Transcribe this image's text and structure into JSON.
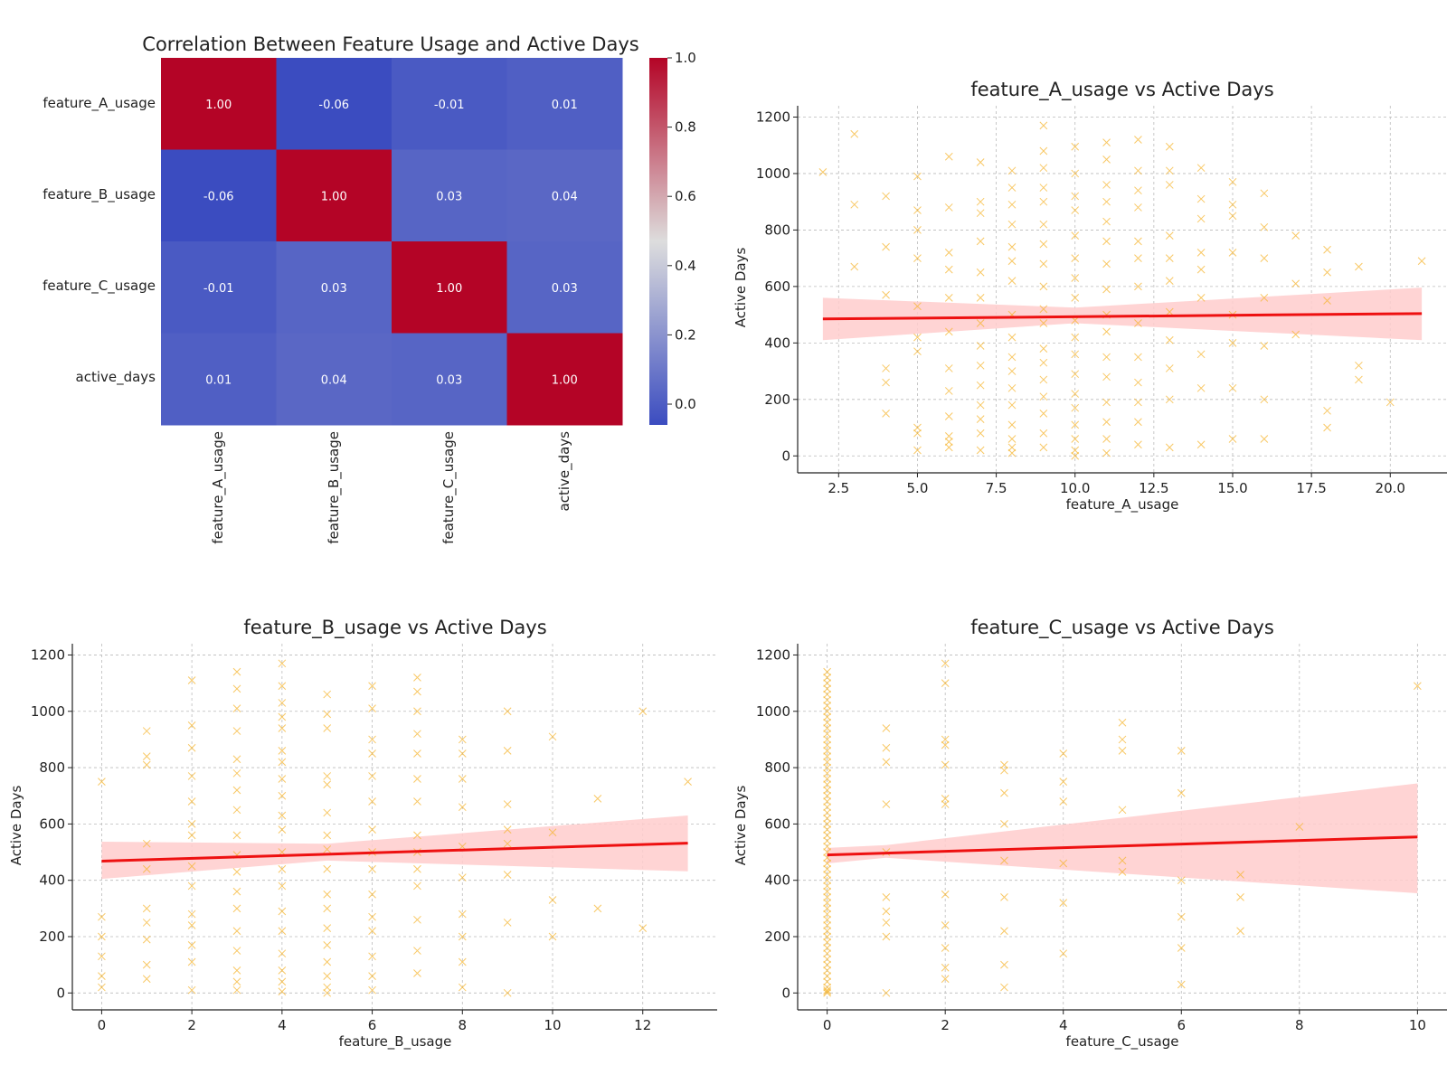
{
  "colors": {
    "scatter": "#f5b632",
    "fit_line": "#ee1111",
    "ci_band": "#ffcccc",
    "grid": "#bbbbbb",
    "heat_low": "#3b4cc0",
    "heat_mid": "#dddddd",
    "heat_high": "#b40426"
  },
  "chart_data": [
    {
      "type": "heatmap",
      "title": "Correlation Between Feature Usage and Active Days",
      "row_labels": [
        "feature_A_usage",
        "feature_B_usage",
        "feature_C_usage",
        "active_days"
      ],
      "col_labels": [
        "feature_A_usage",
        "feature_B_usage",
        "feature_C_usage",
        "active_days"
      ],
      "values": [
        [
          1.0,
          -0.06,
          -0.01,
          0.01
        ],
        [
          -0.06,
          1.0,
          0.03,
          0.04
        ],
        [
          -0.01,
          0.03,
          1.0,
          0.03
        ],
        [
          0.01,
          0.04,
          0.03,
          1.0
        ]
      ],
      "annotations": [
        [
          "1.00",
          "-0.06",
          "-0.01",
          "0.01"
        ],
        [
          "-0.06",
          "1.00",
          "0.03",
          "0.04"
        ],
        [
          "-0.01",
          "0.03",
          "1.00",
          "0.03"
        ],
        [
          "0.01",
          "0.04",
          "0.03",
          "1.00"
        ]
      ],
      "colorbar": {
        "range": [
          -0.06,
          1.0
        ],
        "ticks": [
          "1.0",
          "0.8",
          "0.6",
          "0.4",
          "0.2",
          "0.0"
        ],
        "tick_values": [
          1.0,
          0.8,
          0.6,
          0.4,
          0.2,
          0.0
        ]
      }
    },
    {
      "type": "scatter",
      "title": "feature_A_usage vs Active Days",
      "xlabel": "feature_A_usage",
      "ylabel": "Active Days",
      "xlim": [
        1.2,
        21.8
      ],
      "ylim": [
        -60,
        1240
      ],
      "xticks": [
        2.5,
        5.0,
        7.5,
        10.0,
        12.5,
        15.0,
        17.5,
        20.0
      ],
      "xtick_labels": [
        "2.5",
        "5.0",
        "7.5",
        "10.0",
        "12.5",
        "15.0",
        "17.5",
        "20.0"
      ],
      "yticks": [
        0,
        200,
        400,
        600,
        800,
        1000,
        1200
      ],
      "ytick_labels": [
        "0",
        "200",
        "400",
        "600",
        "800",
        "1000",
        "1200"
      ],
      "x_values": [
        2,
        3,
        3,
        3,
        4,
        4,
        4,
        4,
        4,
        4,
        5,
        5,
        5,
        5,
        5,
        5,
        5,
        5,
        5,
        5,
        6,
        6,
        6,
        6,
        6,
        6,
        6,
        6,
        6,
        6,
        6,
        6,
        7,
        7,
        7,
        7,
        7,
        7,
        7,
        7,
        7,
        7,
        7,
        7,
        7,
        7,
        8,
        8,
        8,
        8,
        8,
        8,
        8,
        8,
        8,
        8,
        8,
        8,
        8,
        8,
        8,
        8,
        8,
        9,
        9,
        9,
        9,
        9,
        9,
        9,
        9,
        9,
        9,
        9,
        9,
        9,
        9,
        9,
        9,
        9,
        9,
        10,
        10,
        10,
        10,
        10,
        10,
        10,
        10,
        10,
        10,
        10,
        10,
        10,
        10,
        10,
        10,
        10,
        10,
        11,
        11,
        11,
        11,
        11,
        11,
        11,
        11,
        11,
        11,
        11,
        11,
        11,
        11,
        11,
        11,
        12,
        12,
        12,
        12,
        12,
        12,
        12,
        12,
        12,
        12,
        12,
        12,
        12,
        13,
        13,
        13,
        13,
        13,
        13,
        13,
        13,
        13,
        13,
        13,
        14,
        14,
        14,
        14,
        14,
        14,
        14,
        14,
        14,
        15,
        15,
        15,
        15,
        15,
        15,
        15,
        15,
        16,
        16,
        16,
        16,
        16,
        16,
        16,
        17,
        17,
        17,
        18,
        18,
        18,
        18,
        18,
        19,
        19,
        19,
        20,
        21
      ],
      "y_values": [
        1005,
        1140,
        890,
        670,
        920,
        740,
        570,
        310,
        260,
        150,
        990,
        870,
        800,
        700,
        530,
        420,
        370,
        100,
        80,
        20,
        1060,
        880,
        720,
        660,
        560,
        440,
        310,
        230,
        140,
        70,
        50,
        30,
        1040,
        900,
        860,
        760,
        650,
        560,
        470,
        390,
        320,
        250,
        180,
        130,
        80,
        20,
        1010,
        950,
        890,
        820,
        740,
        690,
        620,
        500,
        420,
        350,
        300,
        240,
        180,
        110,
        60,
        30,
        10,
        1170,
        1080,
        1020,
        950,
        900,
        820,
        750,
        680,
        600,
        520,
        470,
        380,
        330,
        270,
        210,
        150,
        80,
        30,
        1095,
        1000,
        920,
        870,
        780,
        700,
        630,
        560,
        480,
        420,
        360,
        290,
        220,
        170,
        110,
        60,
        20,
        0,
        1110,
        1050,
        960,
        900,
        830,
        760,
        680,
        590,
        500,
        440,
        350,
        280,
        190,
        120,
        60,
        10,
        1120,
        1010,
        940,
        880,
        760,
        700,
        600,
        470,
        350,
        260,
        190,
        120,
        40,
        1095,
        1010,
        960,
        780,
        700,
        620,
        510,
        410,
        310,
        200,
        30,
        1020,
        910,
        840,
        720,
        660,
        560,
        360,
        240,
        40,
        970,
        890,
        850,
        720,
        500,
        400,
        240,
        60,
        930,
        810,
        700,
        560,
        390,
        200,
        60,
        780,
        610,
        430,
        730,
        650,
        550,
        160,
        100,
        670,
        320,
        270,
        190,
        690
      ],
      "fit": {
        "x": [
          2,
          21
        ],
        "y": [
          485,
          504
        ],
        "ci_lower": [
          410,
          410
        ],
        "ci_mid_lower": 470,
        "ci_upper": [
          560,
          596
        ],
        "ci_mid_upper": 525,
        "ci_mid_x": 10
      }
    },
    {
      "type": "scatter",
      "title": "feature_B_usage vs Active Days",
      "xlabel": "feature_B_usage",
      "ylabel": "Active Days",
      "xlim": [
        -0.65,
        13.65
      ],
      "ylim": [
        -60,
        1240
      ],
      "xticks": [
        0,
        2,
        4,
        6,
        8,
        10,
        12
      ],
      "xtick_labels": [
        "0",
        "2",
        "4",
        "6",
        "8",
        "10",
        "12"
      ],
      "yticks": [
        0,
        200,
        400,
        600,
        800,
        1000,
        1200
      ],
      "ytick_labels": [
        "0",
        "200",
        "400",
        "600",
        "800",
        "1000",
        "1200"
      ],
      "x_values": [
        0,
        0,
        0,
        0,
        0,
        0,
        1,
        1,
        1,
        1,
        1,
        1,
        1,
        1,
        1,
        1,
        2,
        2,
        2,
        2,
        2,
        2,
        2,
        2,
        2,
        2,
        2,
        2,
        2,
        2,
        3,
        3,
        3,
        3,
        3,
        3,
        3,
        3,
        3,
        3,
        3,
        3,
        3,
        3,
        3,
        3,
        3,
        3,
        4,
        4,
        4,
        4,
        4,
        4,
        4,
        4,
        4,
        4,
        4,
        4,
        4,
        4,
        4,
        4,
        4,
        4,
        4,
        4,
        5,
        5,
        5,
        5,
        5,
        5,
        5,
        5,
        5,
        5,
        5,
        5,
        5,
        5,
        5,
        5,
        5,
        6,
        6,
        6,
        6,
        6,
        6,
        6,
        6,
        6,
        6,
        6,
        6,
        6,
        6,
        6,
        7,
        7,
        7,
        7,
        7,
        7,
        7,
        7,
        7,
        7,
        7,
        7,
        7,
        7,
        8,
        8,
        8,
        8,
        8,
        8,
        8,
        8,
        8,
        8,
        9,
        9,
        9,
        9,
        9,
        9,
        9,
        9,
        10,
        10,
        10,
        10,
        11,
        11,
        12,
        12,
        13
      ],
      "y_values": [
        750,
        270,
        200,
        130,
        60,
        20,
        930,
        840,
        810,
        530,
        440,
        300,
        250,
        190,
        100,
        50,
        1110,
        950,
        870,
        770,
        680,
        600,
        560,
        450,
        380,
        280,
        240,
        170,
        110,
        10,
        1140,
        1080,
        1010,
        930,
        830,
        780,
        720,
        650,
        560,
        490,
        430,
        360,
        300,
        220,
        150,
        80,
        40,
        10,
        1170,
        1090,
        1030,
        980,
        940,
        860,
        820,
        760,
        700,
        630,
        580,
        500,
        440,
        380,
        290,
        220,
        140,
        80,
        40,
        5,
        1060,
        990,
        940,
        770,
        740,
        640,
        560,
        510,
        440,
        350,
        300,
        230,
        170,
        110,
        60,
        20,
        0,
        1090,
        1010,
        900,
        850,
        770,
        680,
        580,
        500,
        440,
        350,
        270,
        220,
        130,
        60,
        10,
        1120,
        1070,
        1000,
        920,
        850,
        760,
        680,
        560,
        500,
        440,
        380,
        260,
        150,
        70,
        900,
        850,
        760,
        660,
        520,
        410,
        280,
        200,
        110,
        20,
        1000,
        860,
        670,
        580,
        530,
        420,
        250,
        0,
        910,
        570,
        330,
        200,
        690,
        300,
        1000,
        230,
        750
      ],
      "fit": {
        "x": [
          0,
          13
        ],
        "y": [
          468,
          532
        ],
        "ci_lower": [
          405,
          432
        ],
        "ci_mid_lower": 470,
        "ci_upper": [
          537,
          630
        ],
        "ci_mid_upper": 530,
        "ci_mid_x": 5
      }
    },
    {
      "type": "scatter",
      "title": "feature_C_usage vs Active Days",
      "xlabel": "feature_C_usage",
      "ylabel": "Active Days",
      "xlim": [
        -0.5,
        10.5
      ],
      "ylim": [
        -60,
        1240
      ],
      "xticks": [
        0,
        2,
        4,
        6,
        8,
        10
      ],
      "xtick_labels": [
        "0",
        "2",
        "4",
        "6",
        "8",
        "10"
      ],
      "yticks": [
        0,
        200,
        400,
        600,
        800,
        1000,
        1200
      ],
      "ytick_labels": [
        "0",
        "200",
        "400",
        "600",
        "800",
        "1000",
        "1200"
      ],
      "x_values": [
        0,
        0,
        0,
        0,
        0,
        0,
        0,
        0,
        0,
        0,
        0,
        0,
        0,
        0,
        0,
        0,
        0,
        0,
        0,
        0,
        0,
        0,
        0,
        0,
        0,
        0,
        0,
        0,
        0,
        0,
        0,
        0,
        0,
        0,
        0,
        0,
        0,
        0,
        0,
        0,
        0,
        0,
        0,
        0,
        0,
        0,
        0,
        0,
        0,
        0,
        0,
        0,
        0,
        0,
        0,
        0,
        0,
        0,
        0,
        0,
        1,
        1,
        1,
        1,
        1,
        1,
        1,
        1,
        1,
        1,
        2,
        2,
        2,
        2,
        2,
        2,
        2,
        2,
        2,
        2,
        2,
        2,
        3,
        3,
        3,
        3,
        3,
        3,
        3,
        3,
        3,
        4,
        4,
        4,
        4,
        4,
        4,
        5,
        5,
        5,
        5,
        5,
        5,
        6,
        6,
        6,
        6,
        6,
        6,
        7,
        7,
        7,
        8,
        10
      ],
      "y_values": [
        1140,
        1120,
        1100,
        1080,
        1060,
        1040,
        1020,
        1000,
        980,
        960,
        940,
        920,
        900,
        880,
        860,
        840,
        820,
        800,
        780,
        760,
        740,
        720,
        700,
        680,
        660,
        640,
        620,
        600,
        580,
        560,
        540,
        520,
        500,
        480,
        460,
        440,
        420,
        400,
        380,
        360,
        340,
        320,
        300,
        280,
        260,
        240,
        220,
        200,
        180,
        160,
        140,
        120,
        100,
        80,
        60,
        40,
        20,
        10,
        5,
        0,
        940,
        870,
        820,
        670,
        340,
        290,
        250,
        200,
        0,
        500,
        1170,
        1100,
        900,
        880,
        810,
        690,
        670,
        350,
        240,
        160,
        90,
        50,
        810,
        790,
        710,
        600,
        470,
        340,
        220,
        100,
        20,
        850,
        750,
        680,
        460,
        320,
        140,
        960,
        900,
        860,
        650,
        470,
        430,
        860,
        710,
        400,
        270,
        160,
        30,
        420,
        340,
        220,
        590,
        1090
      ],
      "fit": {
        "x": [
          0,
          10
        ],
        "y": [
          490,
          554
        ],
        "ci_lower": [
          460,
          354
        ],
        "ci_mid_lower": 480,
        "ci_upper": [
          515,
          744
        ],
        "ci_mid_upper": 525,
        "ci_mid_x": 1
      }
    }
  ]
}
